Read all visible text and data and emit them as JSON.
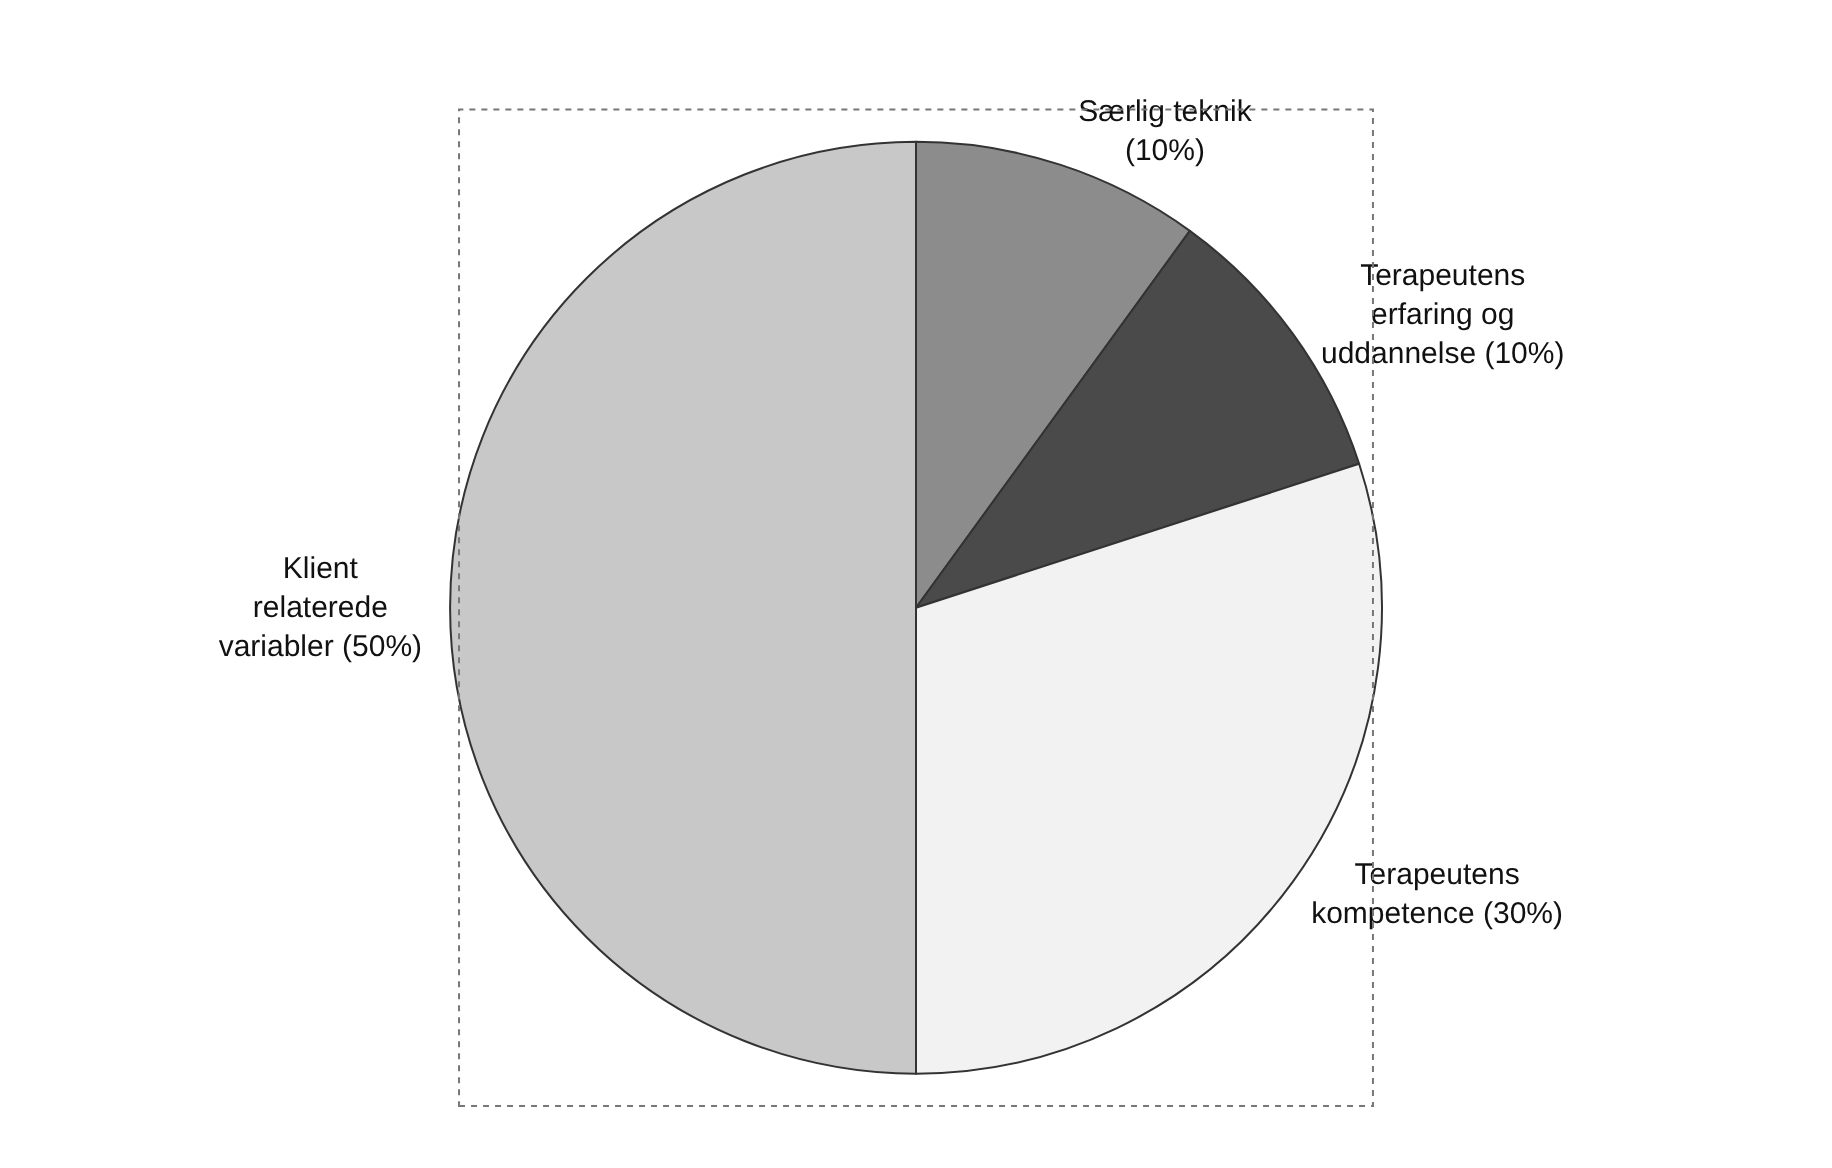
{
  "chart_data": {
    "type": "pie",
    "categories": [
      "Særlig teknik (10%)",
      "Terapeutens erfaring og uddannelse (10%)",
      "Terapeutens kompetence (30%)",
      "Klient relaterede variabler (50%)"
    ],
    "values": [
      10,
      10,
      30,
      50
    ],
    "colors": [
      "#8c8c8c",
      "#4a4a4a",
      "#f2f2f2",
      "#c8c8c8"
    ]
  }
}
